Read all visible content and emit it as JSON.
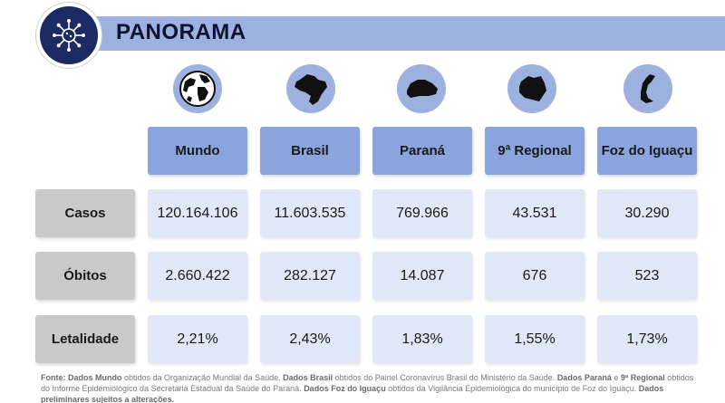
{
  "header": {
    "title": "PANORAMA",
    "logo_icon": "virus-network-icon"
  },
  "columns": [
    {
      "label": "Mundo",
      "icon": "globe-icon"
    },
    {
      "label": "Brasil",
      "icon": "brazil-map-icon"
    },
    {
      "label": "Paraná",
      "icon": "parana-map-icon"
    },
    {
      "label": "9ª Regional",
      "icon": "regional-map-icon"
    },
    {
      "label": "Foz do Iguaçu",
      "icon": "foz-map-icon"
    }
  ],
  "rows": [
    {
      "label": "Casos",
      "values": [
        "120.164.106",
        "11.603.535",
        "769.966",
        "43.531",
        "30.290"
      ]
    },
    {
      "label": "Óbitos",
      "values": [
        "2.660.422",
        "282.127",
        "14.087",
        "676",
        "523"
      ]
    },
    {
      "label": "Letalidade",
      "values": [
        "2,21%",
        "2,43%",
        "1,83%",
        "1,55%",
        "1,73%"
      ]
    }
  ],
  "footer": {
    "fonte": "Fonte:",
    "mundo_label": "Dados Mundo",
    "mundo_text": " obtidos da Organização Mundial da Saúde. ",
    "brasil_label": "Dados Brasil",
    "brasil_text": " obtidos do Painel Coronavírus Brasil do Ministério da Saúde. ",
    "parana_label": "Dados Paraná",
    "parana_text": " e ",
    "regional_label": "9ª Regional",
    "regional_text": " obtidos do Informe Epidemiológico da Secretaria Estadual da Saúde do Paraná. ",
    "foz_label": "Dados Foz do Iguaçu",
    "foz_text": " obtidos da Vigilância Epidemiológica do município de Foz do Iguaçu. ",
    "preliminar": "Dados preliminares sujeitos a alterações."
  },
  "colors": {
    "header_bar": "#9db1e0",
    "logo_bg": "#1c2b63",
    "column_header": "#8aa4de",
    "row_header": "#c9c9c9",
    "cell_bg": "#e0e7f6"
  }
}
